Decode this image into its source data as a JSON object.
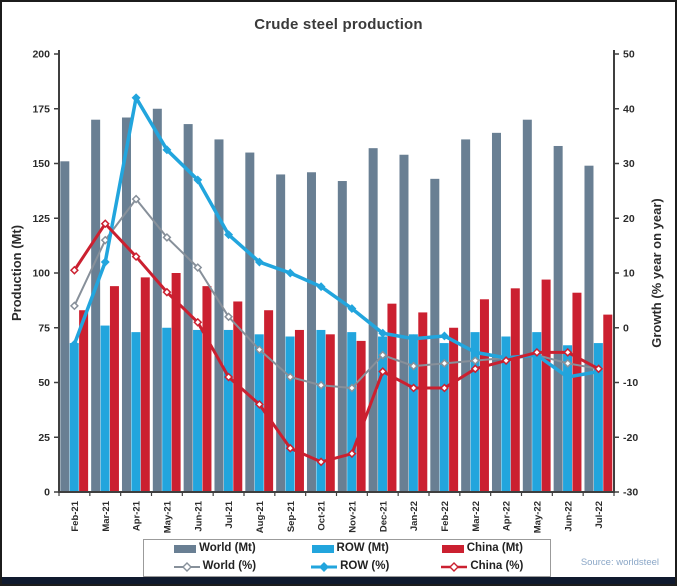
{
  "chart_data": {
    "type": "combo-bar-line",
    "title": "Crude steel production",
    "source": "Source: worldsteel",
    "grid": false,
    "legend_position": "bottom",
    "categories": [
      "Feb-21",
      "Mar-21",
      "Apr-21",
      "May-21",
      "Jun-21",
      "Jul-21",
      "Aug-21",
      "Sep-21",
      "Oct-21",
      "Nov-21",
      "Dec-21",
      "Jan-22",
      "Feb-22",
      "Mar-22",
      "Apr-22",
      "May-22",
      "Jun-22",
      "Jul-22"
    ],
    "left_axis": {
      "label": "Production (Mt)",
      "min": 0,
      "max": 200,
      "ticks": [
        0,
        25,
        50,
        75,
        100,
        125,
        150,
        175,
        200
      ]
    },
    "right_axis": {
      "label": "Growth (% year on year)",
      "min": -30,
      "max": 50,
      "ticks": [
        -30,
        -20,
        -10,
        0,
        10,
        20,
        30,
        40,
        50
      ]
    },
    "bar_series": [
      {
        "name": "World (Mt)",
        "color": "#697f93",
        "values": [
          151,
          170,
          171,
          175,
          168,
          161,
          155,
          145,
          146,
          142,
          157,
          154,
          143,
          161,
          164,
          170,
          158,
          149
        ]
      },
      {
        "name": "ROW (Mt)",
        "color": "#22a5dd",
        "values": [
          68,
          76,
          73,
          75,
          74,
          74,
          72,
          71,
          74,
          73,
          71,
          72,
          68,
          73,
          71,
          73,
          67,
          68
        ]
      },
      {
        "name": "China (Mt)",
        "color": "#cb2030",
        "values": [
          83,
          94,
          98,
          100,
          94,
          87,
          83,
          74,
          72,
          69,
          86,
          82,
          75,
          88,
          93,
          97,
          91,
          81
        ]
      }
    ],
    "line_series": [
      {
        "name": "World (%)",
        "color": "#87909a",
        "width": 2,
        "values": [
          4,
          16,
          23.5,
          16.5,
          11,
          2,
          -4,
          -9,
          -10.5,
          -11,
          -5,
          -7,
          -6.5,
          -6,
          -5.5,
          -5,
          -6.5,
          -7.5
        ]
      },
      {
        "name": "ROW (%)",
        "color": "#22a5dd",
        "width": 3.5,
        "values": [
          -3,
          12,
          42,
          32.5,
          27,
          17,
          12,
          10,
          7.5,
          3.5,
          -1,
          -2,
          -1.5,
          -4.5,
          -5.5,
          -5,
          -9,
          -8
        ]
      },
      {
        "name": "China (%)",
        "color": "#cb2030",
        "width": 3,
        "values": [
          10.5,
          19,
          13,
          6.5,
          1,
          -9,
          -14,
          -22,
          -24.5,
          -23,
          -8,
          -11,
          -11,
          -7.5,
          -6,
          -4.5,
          -4.5,
          -7.5
        ]
      }
    ]
  }
}
